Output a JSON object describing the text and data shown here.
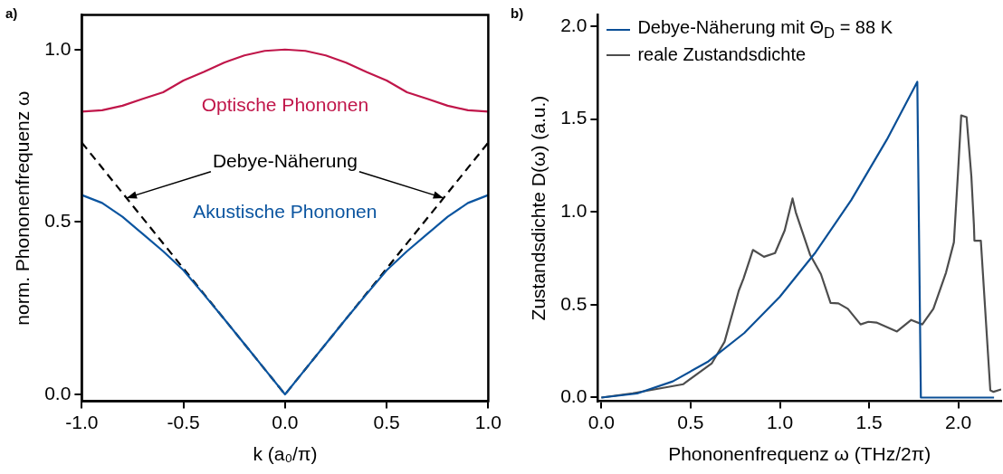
{
  "chart_data": [
    {
      "type": "line",
      "title": "a)",
      "xlabel": "k (a₀/π)",
      "ylabel": "norm. Phononenfrequenz ω",
      "xlim": [
        -1.0,
        1.0
      ],
      "ylim": [
        -0.02,
        1.1
      ],
      "xticks": [
        {
          "value": -1,
          "label": "-1.0"
        },
        {
          "value": -0.5,
          "label": "-0.5"
        },
        {
          "value": 0,
          "label": "0.0"
        },
        {
          "value": 0.5,
          "label": "0.5"
        },
        {
          "value": 1,
          "label": "1.0"
        }
      ],
      "yticks": [
        {
          "value": 0,
          "label": "0.0"
        },
        {
          "value": 0.5,
          "label": "0.5"
        },
        {
          "value": 1,
          "label": "1.0"
        }
      ],
      "grid": false,
      "legend": false,
      "marker": "none",
      "x": [
        -1,
        -0.9,
        -0.8,
        -0.7,
        -0.6,
        -0.5,
        -0.4,
        -0.3,
        -0.2,
        -0.1,
        0,
        0.1,
        0.2,
        0.3,
        0.4,
        0.5,
        0.6,
        0.7,
        0.8,
        0.9,
        1
      ],
      "series": [
        {
          "name": "Optische Phononen",
          "color": "#c0164a",
          "values": [
            0.82,
            0.824,
            0.837,
            0.857,
            0.876,
            0.91,
            0.935,
            0.962,
            0.983,
            0.996,
            1,
            0.996,
            0.983,
            0.962,
            0.935,
            0.91,
            0.876,
            0.857,
            0.837,
            0.824,
            0.82
          ]
        },
        {
          "name": "Akustische Phononen",
          "color": "#0b55a0",
          "values": [
            0.578,
            0.555,
            0.515,
            0.465,
            0.415,
            0.36,
            0.29,
            0.219,
            0.146,
            0.073,
            0,
            0.073,
            0.146,
            0.219,
            0.29,
            0.36,
            0.415,
            0.465,
            0.515,
            0.555,
            0.578
          ]
        },
        {
          "name": "Debye-Näherung",
          "color": "#000000",
          "line_style": "dashed",
          "x": [
            -1,
            0,
            1
          ],
          "values": [
            0.73,
            0,
            0.73
          ]
        }
      ]
    },
    {
      "type": "line",
      "title": "b)",
      "xlabel": "Phononenfrequenz ω (THz/2π)",
      "ylabel": "Zustandsdichte D(ω) (a.u.)",
      "xlim": [
        -0.02,
        2.24
      ],
      "ylim": [
        -0.02,
        2.06
      ],
      "xticks": [
        {
          "value": 0,
          "label": "0.0"
        },
        {
          "value": 0.5,
          "label": "0.5"
        },
        {
          "value": 1,
          "label": "1.0"
        },
        {
          "value": 1.5,
          "label": "1.5"
        },
        {
          "value": 2,
          "label": "2.0"
        }
      ],
      "yticks": [
        {
          "value": 0,
          "label": "0.0"
        },
        {
          "value": 0.5,
          "label": "0.5"
        },
        {
          "value": 1,
          "label": "1.0"
        },
        {
          "value": 1.5,
          "label": "1.5"
        },
        {
          "value": 2,
          "label": "2.0"
        }
      ],
      "grid": false,
      "legend": "top left",
      "marker": "none",
      "series": [
        {
          "name": "Debye-Näherung mit Θ$_{D}$ = 88 K",
          "color": "#0a4f96",
          "x": [
            0,
            0.2,
            0.4,
            0.6,
            0.8,
            1.0,
            1.2,
            1.4,
            1.6,
            1.77,
            1.79,
            2.2
          ],
          "values": [
            0,
            0.022,
            0.087,
            0.195,
            0.347,
            0.543,
            0.782,
            1.064,
            1.39,
            1.7,
            0,
            0
          ]
        },
        {
          "name": "reale Zustandsdichte",
          "color": "#4d4d4d",
          "x": [
            0,
            0.176,
            0.459,
            0.619,
            0.69,
            0.77,
            0.796,
            0.849,
            0.911,
            0.973,
            1.027,
            1.071,
            1.089,
            1.169,
            1.23,
            1.284,
            1.328,
            1.381,
            1.452,
            1.496,
            1.541,
            1.656,
            1.736,
            1.798,
            1.86,
            1.931,
            1.975,
            1.998,
            2.016,
            2.046,
            2.073,
            2.087,
            2.09,
            2.126,
            2.179,
            2.197,
            2.24
          ],
          "values": [
            0,
            0.023,
            0.072,
            0.185,
            0.3,
            0.576,
            0.64,
            0.795,
            0.758,
            0.778,
            0.9,
            1.072,
            0.998,
            0.77,
            0.665,
            0.51,
            0.507,
            0.478,
            0.394,
            0.408,
            0.404,
            0.356,
            0.418,
            0.394,
            0.478,
            0.673,
            0.836,
            1.21,
            1.519,
            1.51,
            1.19,
            0.933,
            0.845,
            0.845,
            0.039,
            0.031,
            0.044
          ]
        }
      ]
    }
  ]
}
